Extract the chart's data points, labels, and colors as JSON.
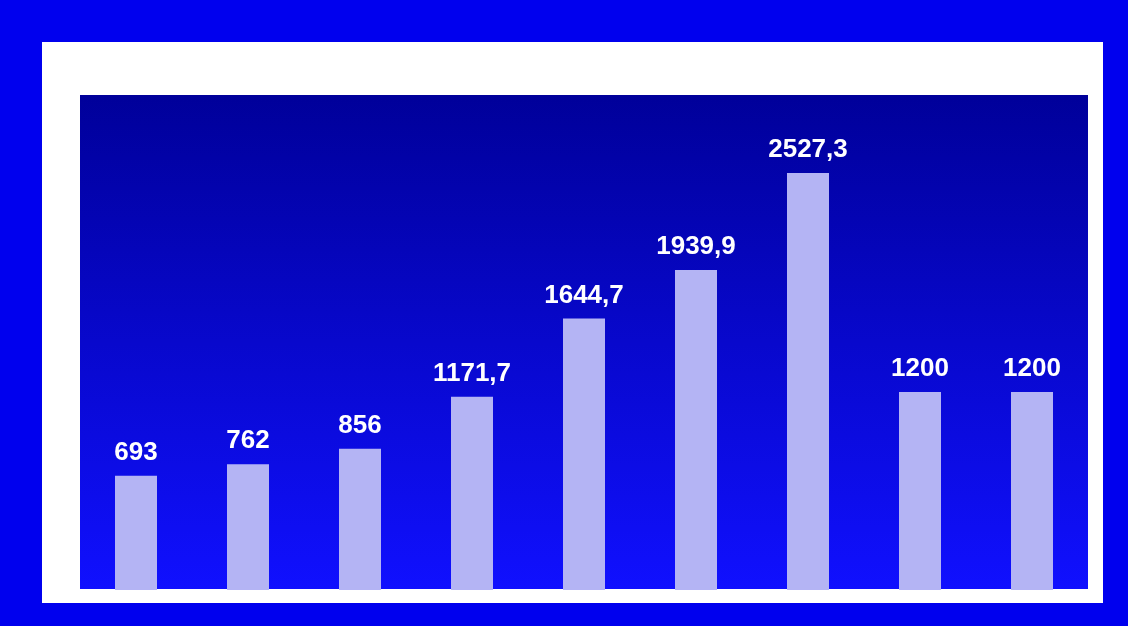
{
  "chart_data": {
    "type": "bar",
    "categories": [
      null,
      null,
      null,
      null,
      null,
      null,
      null,
      null,
      null
    ],
    "values": [
      693,
      762,
      856,
      1171.7,
      1644.7,
      1939.9,
      2527.3,
      1200,
      1200
    ],
    "value_labels": [
      "693",
      "762",
      "856",
      "1171,7",
      "1644,7",
      "1939,9",
      "2527,3",
      "1200",
      "1200"
    ],
    "color": "#b4b4f4"
  }
}
